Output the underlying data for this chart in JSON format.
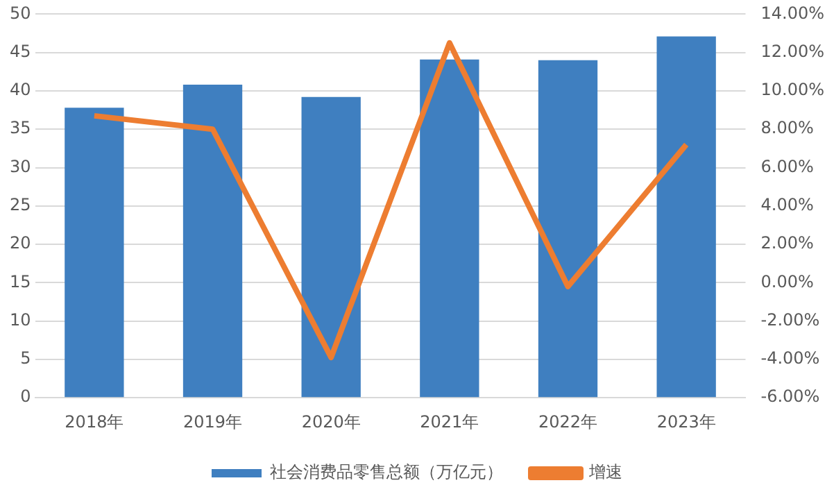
{
  "chart_data": {
    "type": "bar",
    "categories": [
      "2018年",
      "2019年",
      "2020年",
      "2021年",
      "2022年",
      "2023年"
    ],
    "series": [
      {
        "name": "社会消费品零售总额（万亿元）",
        "color": "#3f7fc0",
        "values": [
          37.8,
          40.8,
          39.2,
          44.1,
          44.0,
          47.1
        ]
      },
      {
        "name": "增速",
        "type": "line",
        "axis": "y2",
        "color": "#ed7d31",
        "values": [
          8.7,
          8.0,
          -3.9,
          12.5,
          -0.2,
          7.2
        ]
      }
    ],
    "ylim": [
      0,
      50
    ],
    "yticks": [
      0,
      5,
      10,
      15,
      20,
      25,
      30,
      35,
      40,
      45,
      50
    ],
    "y2lim": [
      -6,
      14
    ],
    "y2ticks": [
      {
        "value": -6,
        "label": "-6.00%"
      },
      {
        "value": -4,
        "label": "-4.00%"
      },
      {
        "value": -2,
        "label": "-2.00%"
      },
      {
        "value": 0,
        "label": "0.00%"
      },
      {
        "value": 2,
        "label": "2.00%"
      },
      {
        "value": 4,
        "label": "4.00%"
      },
      {
        "value": 6,
        "label": "6.00%"
      },
      {
        "value": 8,
        "label": "8.00%"
      },
      {
        "value": 10,
        "label": "10.00%"
      },
      {
        "value": 12,
        "label": "12.00%"
      },
      {
        "value": 14,
        "label": "14.00%"
      }
    ],
    "grid": "y",
    "legend": "bottom",
    "marker": "none"
  }
}
